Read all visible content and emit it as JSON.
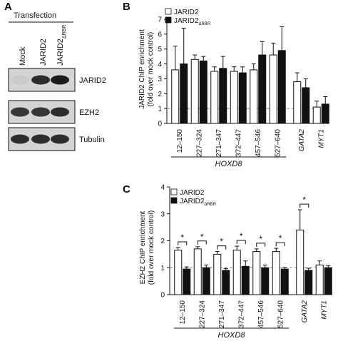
{
  "panelA": {
    "label": "A",
    "header": "Transfection",
    "lanes": [
      {
        "main": "Mock",
        "sub": ""
      },
      {
        "main": "JARID2",
        "sub": ""
      },
      {
        "main": "JARID2",
        "sub": "ΔRBR"
      }
    ],
    "blots": [
      {
        "label": "JARID2",
        "intensities": [
          0.05,
          0.9,
          1.0
        ]
      },
      {
        "label": "EZH2",
        "intensities": [
          0.85,
          0.85,
          0.9
        ]
      },
      {
        "label": "Tubulin",
        "intensities": [
          0.9,
          0.9,
          0.9
        ]
      }
    ]
  },
  "panelB": {
    "label": "B",
    "legend": [
      {
        "name": "JARID2",
        "sub": "",
        "fill": "#ffffff"
      },
      {
        "name": "JARID2",
        "sub": "ΔRBR",
        "fill": "#111111"
      }
    ],
    "ylabel_line1": "JARID2 ChIP enrichment",
    "ylabel_line2": "(fold over mock control)",
    "group_label": "HOXD8"
  },
  "panelC": {
    "label": "C",
    "legend": [
      {
        "name": "JARID2",
        "sub": "",
        "fill": "#ffffff"
      },
      {
        "name": "JARID2",
        "sub": "ΔRBR",
        "fill": "#111111"
      }
    ],
    "ylabel_line1": "EZH2 ChIP enrichment",
    "ylabel_line2": "(fold over mock control)",
    "group_label": "HOXD8"
  },
  "chart_data": [
    {
      "type": "bar",
      "panel": "B",
      "categories": [
        "12–150",
        "227–324",
        "271–347",
        "372–447",
        "457–546",
        "527–640",
        "GATA2",
        "MYT1"
      ],
      "italic_categories": [
        "GATA2",
        "MYT1"
      ],
      "series": [
        {
          "name": "JARID2",
          "values": [
            3.6,
            4.3,
            3.5,
            3.5,
            3.6,
            4.6,
            2.8,
            1.1
          ],
          "errors": [
            1.6,
            0.3,
            0.3,
            0.3,
            0.4,
            0.8,
            0.6,
            0.4
          ],
          "color": "#ffffff"
        },
        {
          "name": "JARID2ΔRBR",
          "values": [
            4.0,
            4.2,
            3.7,
            3.4,
            4.6,
            4.9,
            2.4,
            1.3
          ],
          "errors": [
            2.4,
            0.3,
            0.8,
            0.4,
            0.9,
            1.6,
            0.6,
            0.5
          ],
          "color": "#111111"
        }
      ],
      "reference_line": 1,
      "ylim": [
        0,
        7
      ],
      "yticks": [
        0,
        1,
        2,
        3,
        4,
        5,
        6,
        7
      ],
      "significance": [],
      "xlabel": "",
      "ylabel": "JARID2 ChIP enrichment (fold over mock control)"
    },
    {
      "type": "bar",
      "panel": "C",
      "categories": [
        "12–150",
        "227–324",
        "271–347",
        "372–447",
        "457–546",
        "527–640",
        "GATA2",
        "MYT1"
      ],
      "italic_categories": [
        "GATA2",
        "MYT1"
      ],
      "series": [
        {
          "name": "JARID2",
          "values": [
            1.65,
            1.7,
            1.5,
            1.65,
            1.6,
            1.6,
            2.4,
            1.1
          ],
          "errors": [
            0.1,
            0.08,
            0.1,
            0.15,
            0.1,
            0.12,
            0.75,
            0.15
          ],
          "color": "#ffffff"
        },
        {
          "name": "JARID2ΔRBR",
          "values": [
            0.95,
            1.0,
            0.9,
            1.05,
            1.0,
            0.95,
            0.9,
            1.0
          ],
          "errors": [
            0.08,
            0.1,
            0.07,
            0.2,
            0.1,
            0.06,
            0.08,
            0.08
          ],
          "color": "#111111"
        }
      ],
      "reference_line": 1,
      "ylim": [
        0,
        4
      ],
      "yticks": [
        0,
        1,
        2,
        3,
        4
      ],
      "significance": [
        {
          "category": 0,
          "mark": "*"
        },
        {
          "category": 1,
          "mark": "*"
        },
        {
          "category": 2,
          "mark": "*"
        },
        {
          "category": 3,
          "mark": "*"
        },
        {
          "category": 4,
          "mark": "*"
        },
        {
          "category": 5,
          "mark": "*"
        },
        {
          "category": 6,
          "mark": "*"
        }
      ],
      "xlabel": "",
      "ylabel": "EZH2 ChIP enrichment (fold over mock control)"
    }
  ]
}
